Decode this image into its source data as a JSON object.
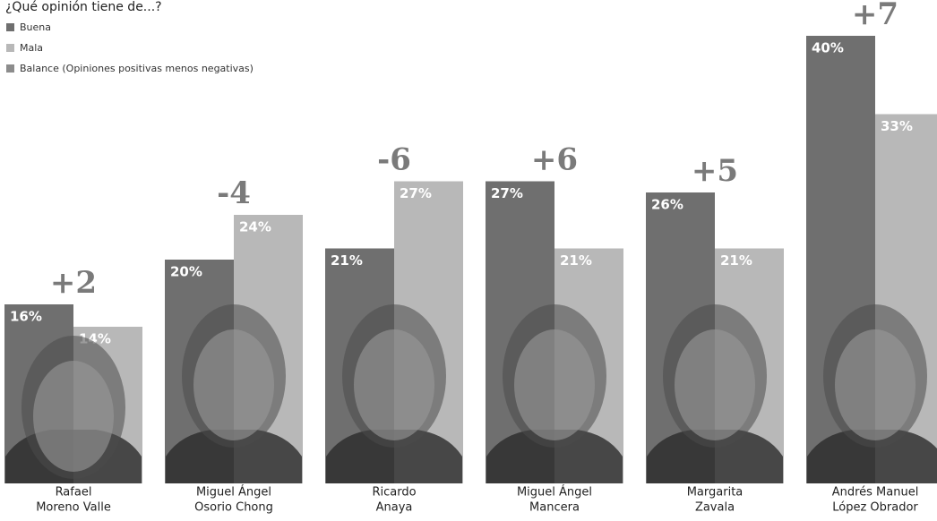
{
  "chart_data": {
    "type": "bar",
    "title": "¿Qué opinión tiene de...?",
    "categories": [
      [
        "Rafael",
        "Moreno Valle"
      ],
      [
        "Miguel Ángel",
        "Osorio Chong"
      ],
      [
        "Ricardo",
        "Anaya"
      ],
      [
        "Miguel Ángel",
        "Mancera"
      ],
      [
        "Margarita",
        "Zavala"
      ],
      [
        "Andrés Manuel",
        "López Obrador"
      ]
    ],
    "series": [
      {
        "name": "Buena",
        "color": "#6f6f6f",
        "values": [
          16,
          20,
          21,
          27,
          26,
          40
        ],
        "value_labels": [
          "16%",
          "20%",
          "21%",
          "27%",
          "26%",
          "40%"
        ]
      },
      {
        "name": "Mala",
        "color": "#b8b8b8",
        "values": [
          14,
          24,
          27,
          21,
          21,
          33
        ],
        "value_labels": [
          "14%",
          "24%",
          "27%",
          "21%",
          "21%",
          "33%"
        ]
      }
    ],
    "balance": {
      "name": "Balance (Opiniones positivas menos negativas)",
      "color": "#8c8c8c",
      "values": [
        2,
        -4,
        -6,
        6,
        5,
        7
      ],
      "value_labels": [
        "+2",
        "-4",
        "-6",
        "+6",
        "+5",
        "+7"
      ]
    },
    "ylim": [
      0,
      40
    ]
  }
}
